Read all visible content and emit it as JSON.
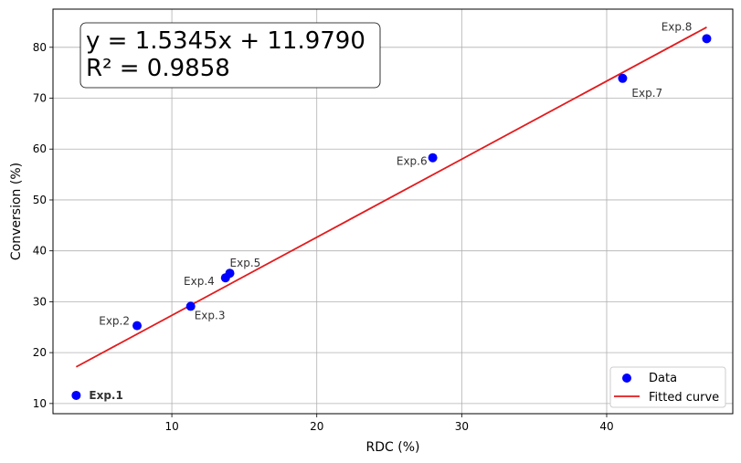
{
  "chart_data": {
    "type": "scatter",
    "xlabel": "RDC (%)",
    "ylabel": "Conversion (%)",
    "xlim": [
      1.8,
      48.7
    ],
    "ylim": [
      8.0,
      87.5
    ],
    "xticks": [
      10,
      20,
      30,
      40
    ],
    "yticks": [
      10,
      20,
      30,
      40,
      50,
      60,
      70,
      80
    ],
    "grid": true,
    "legend": "bottom-right",
    "equation": "y = 1.5345x + 11.9790",
    "r_squared": "R² = 0.9858",
    "fit": {
      "slope": 1.5345,
      "intercept": 11.979,
      "x_start": 3.4,
      "x_end": 46.9
    },
    "series": [
      {
        "name": "Data",
        "color": "#0000ff",
        "points": [
          {
            "label": "Exp.1",
            "x": 3.4,
            "y": 11.6
          },
          {
            "label": "Exp.2",
            "x": 7.6,
            "y": 25.3
          },
          {
            "label": "Exp.3",
            "x": 11.3,
            "y": 29.1
          },
          {
            "label": "Exp.4",
            "x": 13.7,
            "y": 34.7
          },
          {
            "label": "Exp.5",
            "x": 14.0,
            "y": 35.6
          },
          {
            "label": "Exp.6",
            "x": 28.0,
            "y": 58.3
          },
          {
            "label": "Exp.7",
            "x": 41.1,
            "y": 73.9
          },
          {
            "label": "Exp.8",
            "x": 46.9,
            "y": 81.7
          }
        ]
      },
      {
        "name": "Fitted curve",
        "color": "#e41a1c"
      }
    ]
  }
}
